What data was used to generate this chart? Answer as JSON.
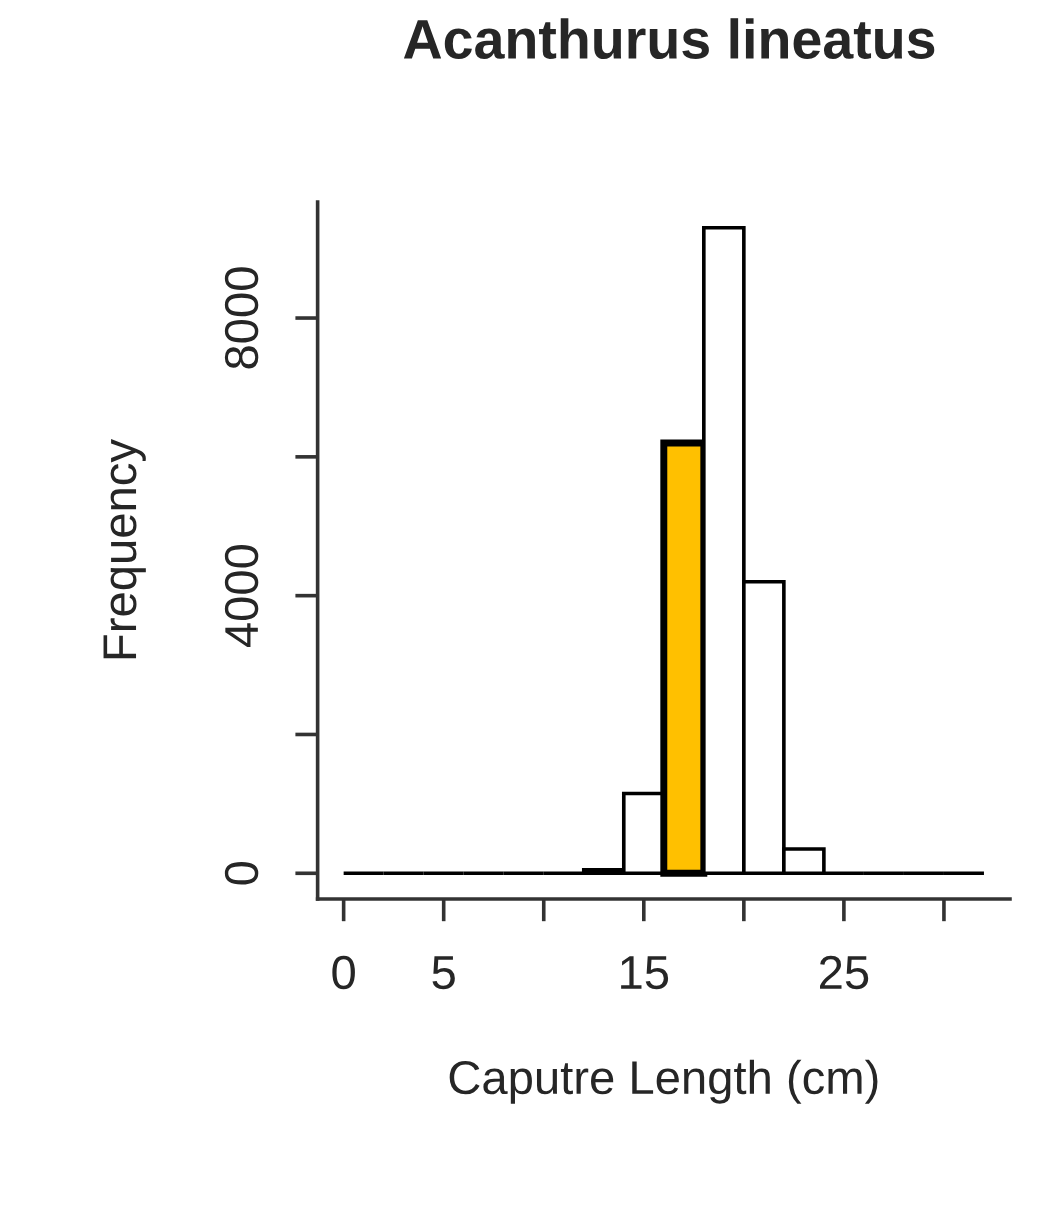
{
  "chart_data": {
    "type": "histogram",
    "title": "Acanthurus lineatus",
    "xlabel": "Caputre Length (cm)",
    "ylabel": "Frequency",
    "bins": [
      0,
      2,
      4,
      6,
      8,
      10,
      12,
      14,
      16,
      18,
      20,
      22,
      24,
      26,
      28,
      30,
      32
    ],
    "values": [
      0,
      0,
      0,
      0,
      0,
      0,
      50,
      1150,
      6200,
      9300,
      4200,
      350,
      0,
      0,
      0,
      0
    ],
    "colors": [
      "#000000",
      "#000000",
      "#000000",
      "#000000",
      "#000000",
      "#000000",
      "#000000",
      "#ffffff",
      "#ffc000",
      "#ffffff",
      "#ffffff",
      "#ffffff",
      "#000000",
      "#000000",
      "#000000",
      "#000000"
    ],
    "xlim": [
      -1.3,
      33.3
    ],
    "ylim": [
      -370,
      9670
    ],
    "xticks": [
      0,
      5,
      {
        "value": 10,
        "label": null
      },
      15,
      {
        "value": 20,
        "label": null
      },
      25,
      {
        "value": 30,
        "label": null
      }
    ],
    "yticks": [
      0,
      {
        "value": 2000,
        "label": null
      },
      4000,
      {
        "value": 6000,
        "label": null
      },
      8000
    ],
    "grid": false,
    "legend": false
  }
}
